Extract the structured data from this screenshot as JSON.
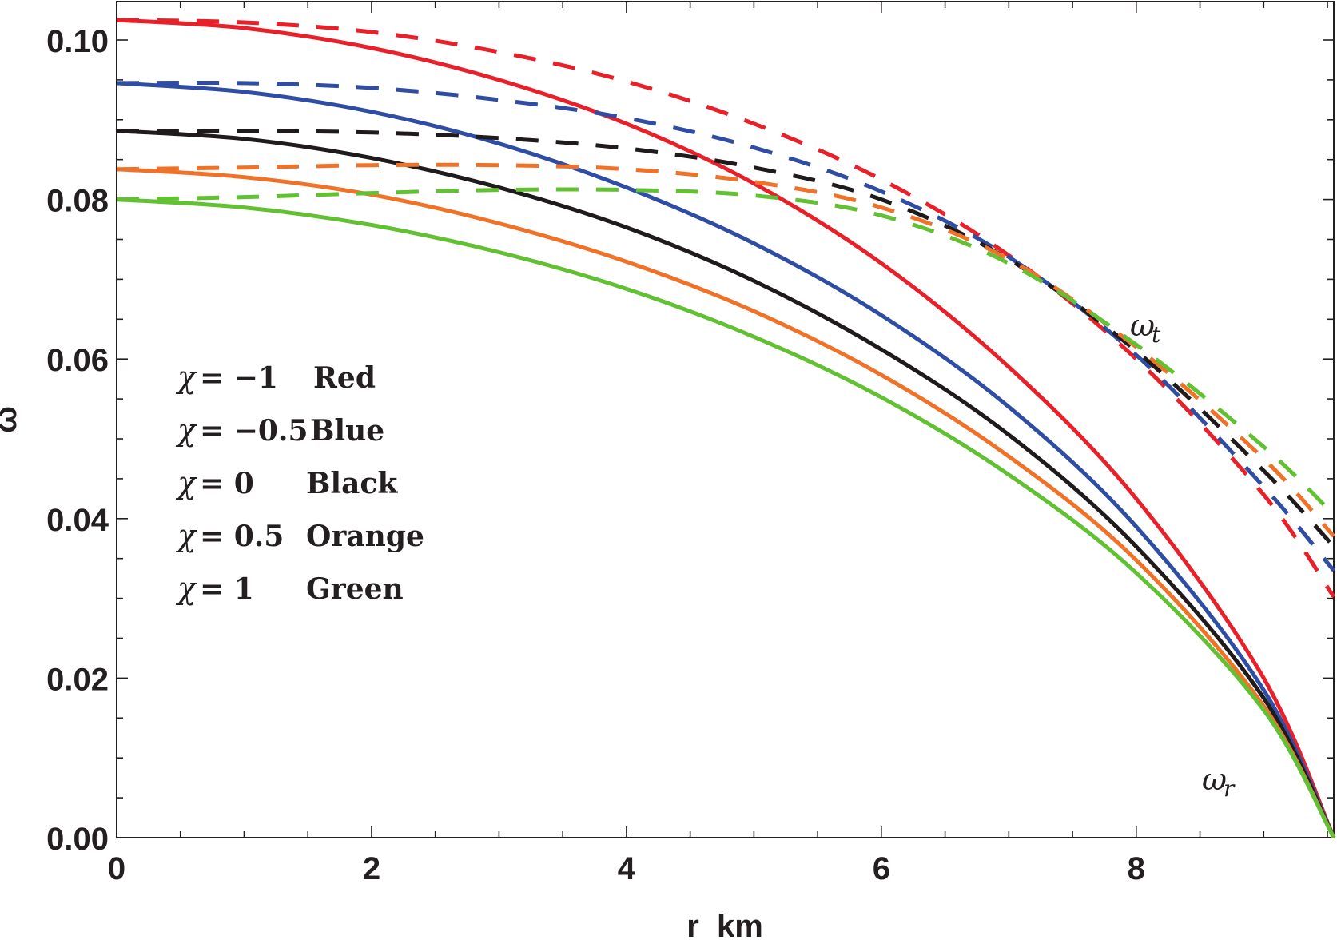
{
  "chart_data": {
    "type": "line",
    "title": "",
    "xlabel": "r  km",
    "ylabel": "ω",
    "xlim": [
      0,
      9.55
    ],
    "ylim": [
      0,
      0.105
    ],
    "x_ticks": [
      "0",
      "2",
      "4",
      "6",
      "8"
    ],
    "x_tick_values": [
      0,
      2,
      4,
      6,
      8
    ],
    "y_ticks": [
      "0.00",
      "0.02",
      "0.04",
      "0.06",
      "0.08",
      "0.10"
    ],
    "y_tick_values": [
      0,
      0.02,
      0.04,
      0.06,
      0.08,
      0.1
    ],
    "grid": false,
    "legend": [
      {
        "chi_label": "χ",
        "eq": "= −1",
        "color_name": "Red"
      },
      {
        "chi_label": "χ",
        "eq": "= −0.5",
        "color_name": "Blue"
      },
      {
        "chi_label": "χ",
        "eq": "= 0",
        "color_name": "Black"
      },
      {
        "chi_label": "χ",
        "eq": "= 0.5",
        "color_name": "Orange"
      },
      {
        "chi_label": "χ",
        "eq": "= 1",
        "color_name": "Green"
      }
    ],
    "legend_placement": "middle-left",
    "annotations": [
      {
        "base": "ω",
        "sub": "t",
        "refers_to": "dashed"
      },
      {
        "base": "ω",
        "sub": "r",
        "refers_to": "solid"
      }
    ],
    "x": [
      0,
      1,
      2,
      3,
      4,
      5,
      6,
      7,
      8,
      9,
      9.55
    ],
    "series": [
      {
        "name": "ω_r χ=-1",
        "chi": -1,
        "style": "solid",
        "color": "#e8202a",
        "values": [
          0.1025,
          0.1015,
          0.099,
          0.095,
          0.0895,
          0.082,
          0.072,
          0.059,
          0.0425,
          0.02,
          0.0
        ]
      },
      {
        "name": "ω_r χ=-0.5",
        "chi": -0.5,
        "style": "solid",
        "color": "#2f4ea3",
        "values": [
          0.0946,
          0.0935,
          0.091,
          0.087,
          0.0815,
          0.0745,
          0.0655,
          0.054,
          0.039,
          0.0185,
          0.0
        ]
      },
      {
        "name": "ω_r χ=0",
        "chi": 0,
        "style": "solid",
        "color": "#1f1a1c",
        "values": [
          0.0886,
          0.0876,
          0.0852,
          0.0815,
          0.0765,
          0.0698,
          0.0612,
          0.0505,
          0.0365,
          0.0175,
          0.0
        ]
      },
      {
        "name": "ω_r χ=0.5",
        "chi": 0.5,
        "style": "solid",
        "color": "#f07228",
        "values": [
          0.0838,
          0.0828,
          0.0806,
          0.077,
          0.0722,
          0.066,
          0.058,
          0.0478,
          0.0348,
          0.0165,
          0.0
        ]
      },
      {
        "name": "ω_r χ=1",
        "chi": 1,
        "style": "solid",
        "color": "#62c033",
        "values": [
          0.08,
          0.079,
          0.0768,
          0.0734,
          0.0688,
          0.0628,
          0.0552,
          0.0455,
          0.0332,
          0.016,
          0.0
        ]
      },
      {
        "name": "ω_t χ=-1",
        "chi": -1,
        "style": "dashed",
        "color": "#e8202a",
        "values": [
          0.1025,
          0.1022,
          0.101,
          0.0985,
          0.0948,
          0.0895,
          0.0825,
          0.073,
          0.06,
          0.043,
          0.0302
        ]
      },
      {
        "name": "ω_t χ=-0.5",
        "chi": -0.5,
        "style": "dashed",
        "color": "#2f4ea3",
        "values": [
          0.0946,
          0.0946,
          0.094,
          0.0925,
          0.0902,
          0.0865,
          0.081,
          0.0728,
          0.0605,
          0.044,
          0.0335
        ]
      },
      {
        "name": "ω_t χ=0",
        "chi": 0,
        "style": "dashed",
        "color": "#1f1a1c",
        "values": [
          0.0886,
          0.0886,
          0.0884,
          0.0877,
          0.0864,
          0.084,
          0.08,
          0.0725,
          0.061,
          0.046,
          0.0365
        ]
      },
      {
        "name": "ω_t χ=0.5",
        "chi": 0.5,
        "style": "dashed",
        "color": "#f07228",
        "values": [
          0.0838,
          0.084,
          0.0843,
          0.0843,
          0.0838,
          0.0822,
          0.079,
          0.0725,
          0.0615,
          0.0475,
          0.0378
        ]
      },
      {
        "name": "ω_t χ=1",
        "chi": 1,
        "style": "dashed",
        "color": "#62c033",
        "values": [
          0.08,
          0.0803,
          0.0808,
          0.0812,
          0.0812,
          0.0805,
          0.078,
          0.072,
          0.0618,
          0.049,
          0.0405
        ]
      }
    ]
  }
}
